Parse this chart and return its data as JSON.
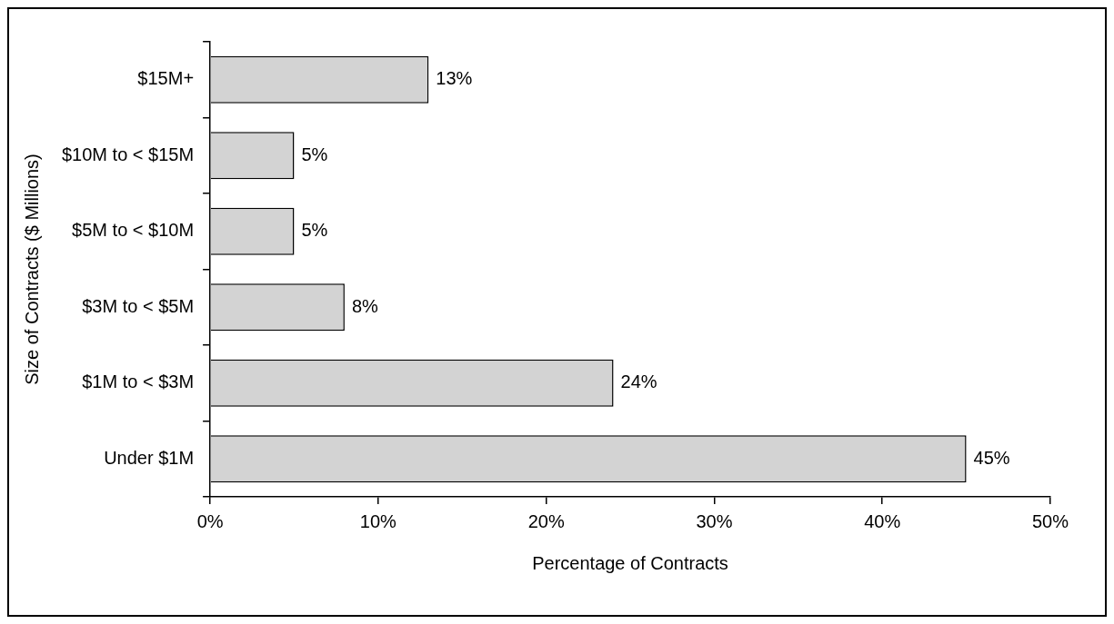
{
  "chart_data": {
    "type": "bar",
    "orientation": "horizontal",
    "xlabel": "Percentage of Contracts",
    "ylabel": "Size of Contracts ($ Millions)",
    "categories": [
      "$15M+",
      "$10M to < $15M",
      "$5M to < $10M",
      "$3M to < $5M",
      "$1M to < $3M",
      "Under $1M"
    ],
    "values": [
      13,
      5,
      5,
      8,
      24,
      45
    ],
    "value_labels": [
      "13%",
      "5%",
      "5%",
      "8%",
      "24%",
      "45%"
    ],
    "color": "#d3d3d3",
    "xlim": [
      0,
      50
    ],
    "xticks": [
      {
        "value": 0,
        "label": "0%"
      },
      {
        "value": 10,
        "label": "10%"
      },
      {
        "value": 20,
        "label": "20%"
      },
      {
        "value": 30,
        "label": "30%"
      },
      {
        "value": 40,
        "label": "40%"
      },
      {
        "value": 50,
        "label": "50%"
      }
    ],
    "grid": false,
    "legend": false
  }
}
